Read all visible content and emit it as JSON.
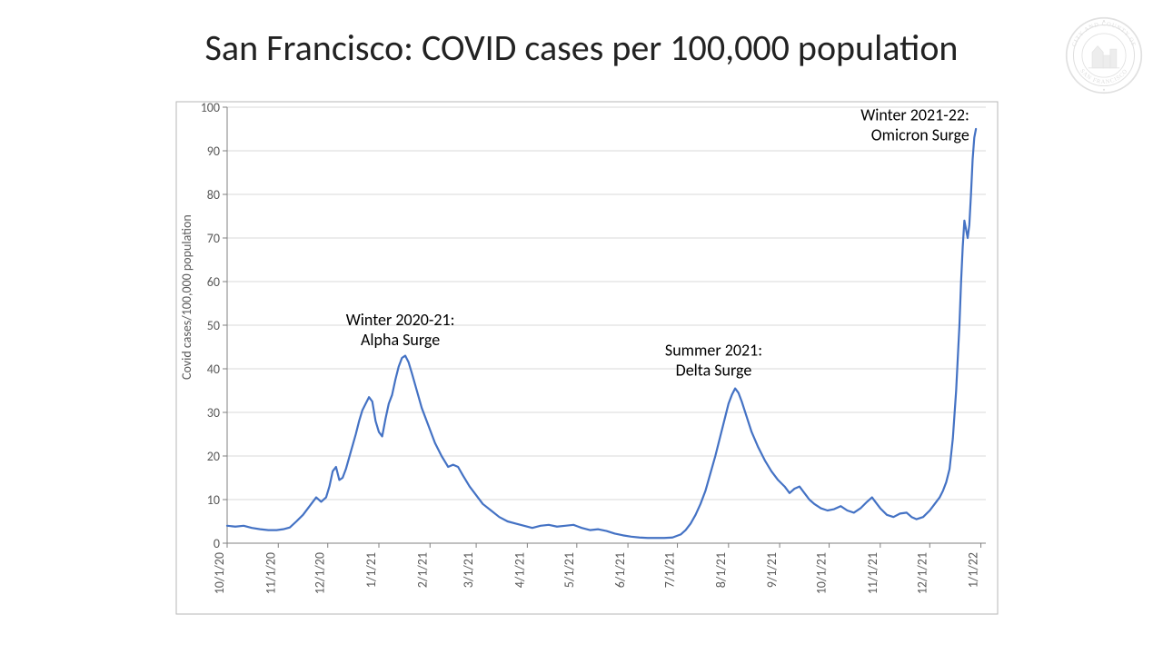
{
  "title": "San Francisco: COVID cases per 100,000 population",
  "seal_text_top": "CITY AND COUNTY OF",
  "seal_text_bottom": "SAN FRANCISCO",
  "chart": {
    "type": "line",
    "background_color": "#ffffff",
    "border_color": "#b7b7b7",
    "grid_color": "#d9d9d9",
    "axis_line_color": "#808080",
    "tick_color": "#808080",
    "line_color": "#4472c4",
    "line_width": 2.2,
    "title_fontsize": 40,
    "annotation_fontsize": 18,
    "annotation_color": "#000000",
    "ylabel": "Covid cases/100,000 population",
    "ylabel_fontsize": 14,
    "tick_label_fontsize": 14,
    "tick_label_color": "#595959",
    "ylim": [
      0,
      100
    ],
    "ytick_step": 10,
    "x_categories": [
      "10/1/20",
      "11/1/20",
      "12/1/20",
      "1/1/21",
      "2/1/21",
      "3/1/21",
      "4/1/21",
      "5/1/21",
      "6/1/21",
      "7/1/21",
      "8/1/21",
      "9/1/21",
      "10/1/21",
      "11/1/21",
      "12/1/21",
      "1/1/22"
    ],
    "x_index_range": [
      0,
      460
    ],
    "x_tick_indices": [
      0,
      31,
      61,
      92,
      123,
      151,
      182,
      212,
      243,
      273,
      304,
      335,
      365,
      396,
      426,
      457
    ],
    "series": [
      {
        "name": "cases_per_100k",
        "points": [
          [
            0,
            4.0
          ],
          [
            5,
            3.8
          ],
          [
            10,
            4.0
          ],
          [
            15,
            3.5
          ],
          [
            20,
            3.2
          ],
          [
            25,
            3.0
          ],
          [
            30,
            3.0
          ],
          [
            34,
            3.2
          ],
          [
            38,
            3.6
          ],
          [
            42,
            5.0
          ],
          [
            46,
            6.5
          ],
          [
            50,
            8.5
          ],
          [
            54,
            10.5
          ],
          [
            57,
            9.5
          ],
          [
            60,
            10.5
          ],
          [
            62,
            13.0
          ],
          [
            64,
            16.5
          ],
          [
            66,
            17.5
          ],
          [
            68,
            14.5
          ],
          [
            70,
            15.0
          ],
          [
            72,
            17.0
          ],
          [
            75,
            21.0
          ],
          [
            78,
            25.0
          ],
          [
            80,
            28.0
          ],
          [
            82,
            30.5
          ],
          [
            84,
            32.0
          ],
          [
            86,
            33.5
          ],
          [
            88,
            32.5
          ],
          [
            90,
            28.0
          ],
          [
            92,
            25.5
          ],
          [
            94,
            24.5
          ],
          [
            96,
            28.5
          ],
          [
            98,
            32.0
          ],
          [
            100,
            34.0
          ],
          [
            102,
            37.5
          ],
          [
            104,
            40.5
          ],
          [
            106,
            42.5
          ],
          [
            108,
            43.0
          ],
          [
            110,
            41.5
          ],
          [
            112,
            39.0
          ],
          [
            115,
            35.0
          ],
          [
            118,
            31.0
          ],
          [
            122,
            27.0
          ],
          [
            126,
            23.0
          ],
          [
            130,
            20.0
          ],
          [
            134,
            17.5
          ],
          [
            137,
            18.0
          ],
          [
            140,
            17.5
          ],
          [
            143,
            15.5
          ],
          [
            147,
            13.0
          ],
          [
            151,
            11.0
          ],
          [
            155,
            9.0
          ],
          [
            160,
            7.5
          ],
          [
            165,
            6.0
          ],
          [
            170,
            5.0
          ],
          [
            175,
            4.5
          ],
          [
            180,
            4.0
          ],
          [
            185,
            3.5
          ],
          [
            190,
            4.0
          ],
          [
            195,
            4.2
          ],
          [
            200,
            3.8
          ],
          [
            205,
            4.0
          ],
          [
            210,
            4.2
          ],
          [
            215,
            3.5
          ],
          [
            220,
            3.0
          ],
          [
            225,
            3.2
          ],
          [
            230,
            2.8
          ],
          [
            235,
            2.2
          ],
          [
            240,
            1.8
          ],
          [
            245,
            1.5
          ],
          [
            250,
            1.3
          ],
          [
            255,
            1.2
          ],
          [
            260,
            1.2
          ],
          [
            265,
            1.2
          ],
          [
            270,
            1.3
          ],
          [
            275,
            2.0
          ],
          [
            278,
            3.0
          ],
          [
            281,
            4.5
          ],
          [
            284,
            6.5
          ],
          [
            287,
            9.0
          ],
          [
            290,
            12.0
          ],
          [
            293,
            16.0
          ],
          [
            296,
            20.0
          ],
          [
            299,
            24.5
          ],
          [
            302,
            29.0
          ],
          [
            304,
            32.0
          ],
          [
            306,
            34.0
          ],
          [
            308,
            35.5
          ],
          [
            310,
            34.5
          ],
          [
            312,
            32.5
          ],
          [
            315,
            29.0
          ],
          [
            318,
            25.5
          ],
          [
            322,
            22.0
          ],
          [
            326,
            19.0
          ],
          [
            330,
            16.5
          ],
          [
            334,
            14.5
          ],
          [
            338,
            13.0
          ],
          [
            341,
            11.5
          ],
          [
            344,
            12.5
          ],
          [
            347,
            13.0
          ],
          [
            350,
            11.5
          ],
          [
            353,
            10.0
          ],
          [
            356,
            9.0
          ],
          [
            360,
            8.0
          ],
          [
            364,
            7.5
          ],
          [
            368,
            7.8
          ],
          [
            372,
            8.5
          ],
          [
            376,
            7.5
          ],
          [
            380,
            7.0
          ],
          [
            384,
            8.0
          ],
          [
            388,
            9.5
          ],
          [
            391,
            10.5
          ],
          [
            393,
            9.5
          ],
          [
            396,
            8.0
          ],
          [
            400,
            6.5
          ],
          [
            404,
            6.0
          ],
          [
            408,
            6.8
          ],
          [
            412,
            7.0
          ],
          [
            415,
            6.0
          ],
          [
            418,
            5.5
          ],
          [
            422,
            6.0
          ],
          [
            426,
            7.5
          ],
          [
            429,
            9.0
          ],
          [
            432,
            10.5
          ],
          [
            434,
            12.0
          ],
          [
            436,
            14.0
          ],
          [
            438,
            17.0
          ],
          [
            440,
            24.0
          ],
          [
            442,
            35.0
          ],
          [
            444,
            50.0
          ],
          [
            445,
            60.0
          ],
          [
            446,
            68.0
          ],
          [
            447,
            74.0
          ],
          [
            448,
            72.0
          ],
          [
            449,
            70.0
          ],
          [
            450,
            73.0
          ],
          [
            451,
            80.0
          ],
          [
            452,
            88.0
          ],
          [
            453,
            93.0
          ],
          [
            454,
            95.0
          ]
        ]
      }
    ],
    "annotations": [
      {
        "id": "alpha",
        "lines": [
          "Winter 2020-21:",
          "Alpha Surge"
        ],
        "x_index": 105,
        "y_value": 50,
        "anchor": "middle"
      },
      {
        "id": "delta",
        "lines": [
          "Summer 2021:",
          "Delta Surge"
        ],
        "x_index": 295,
        "y_value": 43,
        "anchor": "middle"
      },
      {
        "id": "omicron",
        "lines": [
          "Winter 2021-22:",
          "Omicron Surge"
        ],
        "x_index": 450,
        "y_value": 97,
        "anchor": "end"
      }
    ]
  }
}
